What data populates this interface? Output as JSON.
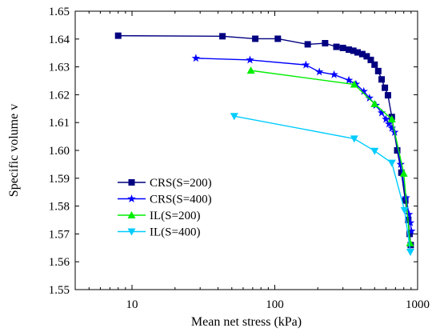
{
  "chart_data": {
    "type": "line",
    "xlabel": "Mean net stress (kPa)",
    "ylabel": "Specific volume v",
    "x_scale": "log",
    "xlim": [
      4,
      1000
    ],
    "ylim": [
      1.55,
      1.65
    ],
    "x_ticks": [
      10,
      100,
      1000
    ],
    "x_tick_labels": [
      "10",
      "100",
      "1000"
    ],
    "y_ticks": [
      1.55,
      1.56,
      1.57,
      1.58,
      1.59,
      1.6,
      1.61,
      1.62,
      1.63,
      1.64,
      1.65
    ],
    "y_tick_labels": [
      "1.55",
      "1.56",
      "1.57",
      "1.58",
      "1.59",
      "1.60",
      "1.61",
      "1.62",
      "1.63",
      "1.64",
      "1.65"
    ],
    "grid": false,
    "legend_position": "lower-left",
    "series": [
      {
        "name": "CRS(S=200)",
        "color": "#000080",
        "marker": "square",
        "points": [
          [
            8,
            1.6412
          ],
          [
            43,
            1.641
          ],
          [
            73,
            1.6401
          ],
          [
            105,
            1.6401
          ],
          [
            170,
            1.6381
          ],
          [
            225,
            1.6385
          ],
          [
            270,
            1.6372
          ],
          [
            300,
            1.6368
          ],
          [
            330,
            1.6362
          ],
          [
            355,
            1.6358
          ],
          [
            380,
            1.6352
          ],
          [
            410,
            1.6346
          ],
          [
            440,
            1.6338
          ],
          [
            470,
            1.6325
          ],
          [
            500,
            1.6308
          ],
          [
            530,
            1.6285
          ],
          [
            560,
            1.6255
          ],
          [
            590,
            1.6225
          ],
          [
            620,
            1.6198
          ],
          [
            660,
            1.612
          ],
          [
            720,
            1.6
          ],
          [
            770,
            1.592
          ],
          [
            820,
            1.582
          ],
          [
            860,
            1.575
          ],
          [
            880,
            1.57
          ],
          [
            895,
            1.566
          ]
        ]
      },
      {
        "name": "CRS(S=400)",
        "color": "#0000ff",
        "marker": "star",
        "points": [
          [
            28,
            1.6331
          ],
          [
            67,
            1.6325
          ],
          [
            165,
            1.6307
          ],
          [
            205,
            1.6282
          ],
          [
            260,
            1.6272
          ],
          [
            330,
            1.6252
          ],
          [
            370,
            1.6238
          ],
          [
            420,
            1.6212
          ],
          [
            460,
            1.6188
          ],
          [
            510,
            1.6162
          ],
          [
            560,
            1.6135
          ],
          [
            600,
            1.6112
          ],
          [
            630,
            1.6095
          ],
          [
            660,
            1.608
          ],
          [
            690,
            1.6065
          ],
          [
            760,
            1.595
          ],
          [
            830,
            1.583
          ],
          [
            870,
            1.577
          ],
          [
            890,
            1.574
          ],
          [
            905,
            1.571
          ]
        ]
      },
      {
        "name": "IL(S=200)",
        "color": "#00ee00",
        "marker": "triangle-up",
        "points": [
          [
            68,
            1.6287
          ],
          [
            360,
            1.6237
          ],
          [
            500,
            1.6167
          ],
          [
            660,
            1.6112
          ],
          [
            800,
            1.5917
          ],
          [
            885,
            1.5667
          ]
        ]
      },
      {
        "name": "IL(S=400)",
        "color": "#00ccff",
        "marker": "triangle-down",
        "points": [
          [
            52,
            1.6123
          ],
          [
            360,
            1.6042
          ],
          [
            500,
            1.5998
          ],
          [
            660,
            1.5955
          ],
          [
            810,
            1.5785
          ],
          [
            890,
            1.5635
          ]
        ]
      }
    ]
  }
}
